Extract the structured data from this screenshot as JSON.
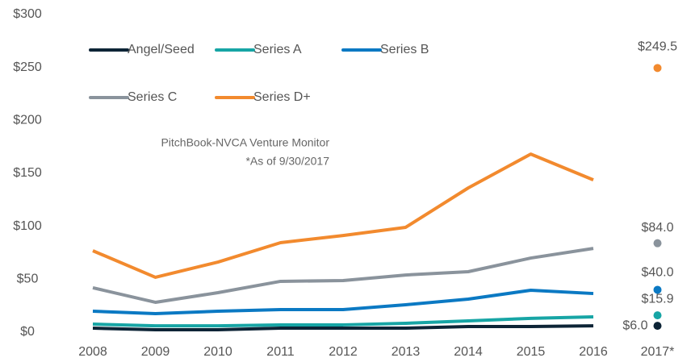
{
  "chart_data": {
    "type": "line",
    "categories": [
      "2008",
      "2009",
      "2010",
      "2011",
      "2012",
      "2013",
      "2014",
      "2015",
      "2016",
      "2017*"
    ],
    "last_point_separate": true,
    "series": [
      {
        "name": "Angel/Seed",
        "color": "#0d2436",
        "values": [
          3.8,
          2.3,
          2.3,
          3.8,
          3.8,
          3.8,
          5.3,
          5.3,
          6,
          6.0
        ],
        "value_labels": [
          null,
          null,
          null,
          null,
          null,
          null,
          null,
          null,
          null,
          "$6.0"
        ]
      },
      {
        "name": "Series A",
        "color": "#17a5a5",
        "values": [
          7.6,
          6,
          6,
          6.9,
          6.9,
          8.4,
          10.7,
          13,
          14.5,
          15.9
        ],
        "value_labels": [
          null,
          null,
          null,
          null,
          null,
          null,
          null,
          null,
          null,
          "$15.9"
        ]
      },
      {
        "name": "Series B",
        "color": "#0b79c3",
        "values": [
          19.8,
          17.5,
          19.8,
          21.3,
          21.3,
          25.9,
          31.2,
          39.6,
          36.5,
          40.0
        ],
        "value_labels": [
          null,
          null,
          null,
          null,
          null,
          null,
          null,
          null,
          null,
          "$40.0"
        ]
      },
      {
        "name": "Series C",
        "color": "#8a939c",
        "values": [
          41.9,
          28.2,
          37.3,
          48,
          48.7,
          54,
          57.1,
          70,
          79.1,
          84.0
        ],
        "value_labels": [
          null,
          null,
          null,
          null,
          null,
          null,
          null,
          null,
          null,
          "$84.0"
        ]
      },
      {
        "name": "Series D+",
        "color": "#f28a2e",
        "values": [
          76.9,
          51.8,
          66.2,
          84.5,
          91.3,
          99,
          136.2,
          168.2,
          143.8,
          249.5
        ],
        "value_labels": [
          null,
          null,
          null,
          null,
          null,
          null,
          null,
          null,
          null,
          "$249.5"
        ]
      }
    ],
    "ylim": [
      0,
      300
    ],
    "yticks": [
      {
        "value": 0,
        "label": "$0"
      },
      {
        "value": 50,
        "label": "$50"
      },
      {
        "value": 100,
        "label": "$100"
      },
      {
        "value": 150,
        "label": "$150"
      },
      {
        "value": 200,
        "label": "$200"
      },
      {
        "value": 250,
        "label": "$250"
      },
      {
        "value": 300,
        "label": "$300"
      }
    ],
    "annotations": [
      "PitchBook-NVCA Venture Monitor",
      "*As of 9/30/2017"
    ]
  }
}
